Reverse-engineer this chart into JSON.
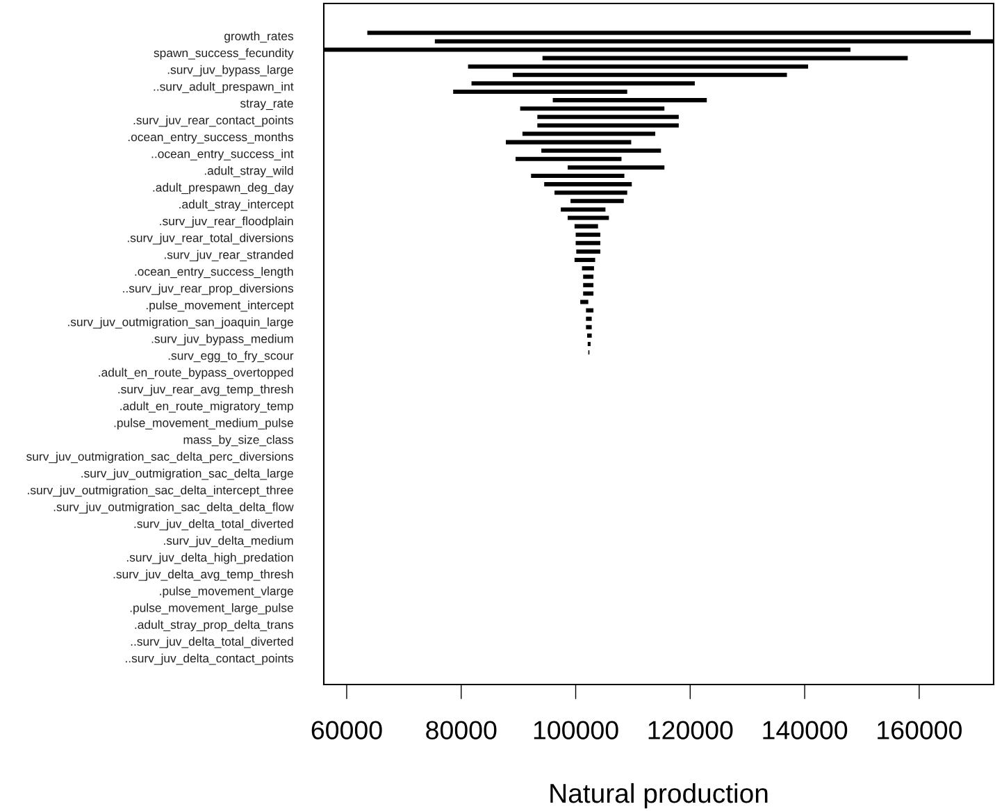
{
  "chart_data": {
    "type": "bar",
    "orientation": "horizontal",
    "xlabel": "Natural production",
    "categories": [
      null,
      null,
      null,
      null,
      null,
      null,
      null,
      null,
      null,
      null,
      null,
      null,
      null,
      null,
      null,
      null,
      null,
      null,
      null,
      null,
      null,
      null,
      null,
      null,
      null,
      null,
      null,
      null,
      null,
      null,
      null,
      null,
      null,
      null,
      null,
      null,
      null,
      null,
      null,
      null,
      null,
      null,
      null,
      null,
      null,
      null,
      null,
      null,
      null,
      null,
      null,
      null,
      null,
      null,
      null,
      null,
      null,
      null,
      null,
      null,
      null,
      null,
      null,
      null,
      null,
      null,
      null,
      null,
      null,
      null,
      null,
      null,
      null,
      null,
      null,
      null,
      null,
      null,
      null,
      null,
      null
    ],
    "base": [
      null,
      null,
      null,
      63600,
      75400,
      56000,
      94200,
      81200,
      89000,
      81800,
      78600,
      96000,
      90300,
      93300,
      93300,
      90700,
      87800,
      94000,
      89500,
      98600,
      92200,
      94500,
      96300,
      99100,
      97400,
      98600,
      99800,
      100000,
      100000,
      100100,
      99800,
      101100,
      101300,
      101300,
      101300,
      100800,
      101800,
      101800,
      101800,
      102000,
      102100,
      102200,
      null,
      null,
      null,
      null,
      null,
      null,
      null,
      null,
      null,
      null,
      null,
      null,
      null,
      null,
      null,
      null,
      null,
      null,
      null,
      null,
      null,
      null,
      null,
      null,
      null,
      null,
      null,
      null,
      null,
      null,
      null,
      null,
      null,
      null,
      null,
      null,
      null,
      null,
      null
    ],
    "values": [
      null,
      null,
      null,
      105400,
      97600,
      92000,
      63800,
      59400,
      47900,
      39000,
      30400,
      26900,
      25200,
      24700,
      24700,
      23200,
      21900,
      20900,
      18500,
      16900,
      16300,
      15300,
      12700,
      9300,
      7800,
      7200,
      4100,
      4300,
      4300,
      4200,
      3600,
      2100,
      1800,
      1800,
      1800,
      1400,
      1300,
      1000,
      1000,
      800,
      500,
      200,
      null,
      null,
      null,
      null,
      null,
      null,
      null,
      null,
      null,
      null,
      null,
      null,
      null,
      null,
      null,
      null,
      null,
      null,
      null,
      null,
      null,
      null,
      null,
      null,
      null,
      null,
      null,
      null,
      null,
      null,
      null,
      null,
      null,
      null,
      null,
      null,
      null,
      null,
      null
    ],
    "color": "#000000",
    "xlim": [
      56000,
      173000
    ],
    "xticks": [
      60000,
      80000,
      100000,
      120000,
      140000,
      160000
    ],
    "annotations": [
      "growth_rates",
      "spawn_success_fecundity",
      ".surv_juv_bypass_large",
      "..surv_adult_prespawn_int",
      "stray_rate",
      ".surv_juv_rear_contact_points",
      ".ocean_entry_success_months",
      "..ocean_entry_success_int",
      ".adult_stray_wild",
      ".adult_prespawn_deg_day",
      ".adult_stray_intercept",
      ".surv_juv_rear_floodplain",
      ".surv_juv_rear_total_diversions",
      ".surv_juv_rear_stranded",
      ".ocean_entry_success_length",
      "..surv_juv_rear_prop_diversions",
      ".pulse_movement_intercept",
      ".surv_juv_outmigration_san_joaquin_large",
      ".surv_juv_bypass_medium",
      ".surv_egg_to_fry_scour",
      ".adult_en_route_bypass_overtopped",
      ".surv_juv_rear_avg_temp_thresh",
      ".adult_en_route_migratory_temp",
      ".pulse_movement_medium_pulse",
      "mass_by_size_class",
      "surv_juv_outmigration_sac_delta_perc_diversions",
      ".surv_juv_outmigration_sac_delta_large",
      ".surv_juv_outmigration_sac_delta_intercept_three",
      ".surv_juv_outmigration_sac_delta_delta_flow",
      ".surv_juv_delta_total_diverted",
      ".surv_juv_delta_medium",
      ".surv_juv_delta_high_predation",
      ".surv_juv_delta_avg_temp_thresh",
      ".pulse_movement_vlarge",
      ".pulse_movement_large_pulse",
      ".adult_stray_prop_delta_trans",
      "..surv_juv_delta_total_diverted",
      "..surv_juv_delta_contact_points"
    ]
  }
}
